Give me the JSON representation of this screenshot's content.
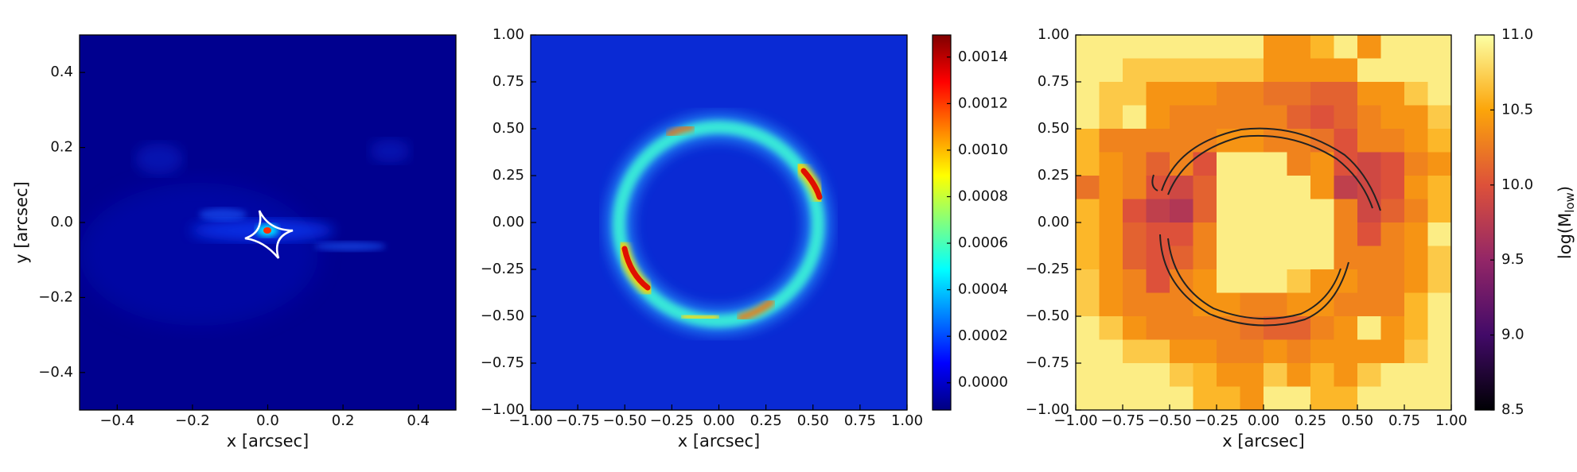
{
  "chart_data": [
    {
      "type": "image",
      "cmap": "jet",
      "xlabel": "x [arcsec]",
      "ylabel": "y [arcsec]",
      "xlim": [
        -0.5,
        0.5
      ],
      "ylim": [
        -0.5,
        0.5
      ],
      "xticks": [
        {
          "value": -0.4,
          "label": "−0.4"
        },
        {
          "value": -0.2,
          "label": "−0.2"
        },
        {
          "value": 0,
          "label": "0.0"
        },
        {
          "value": 0.2,
          "label": "0.2"
        },
        {
          "value": 0.4,
          "label": "0.4"
        }
      ],
      "yticks": [
        {
          "value": -0.4,
          "label": "−0.4"
        },
        {
          "value": -0.2,
          "label": "−0.2"
        },
        {
          "value": 0,
          "label": "0.0"
        },
        {
          "value": 0.2,
          "label": "0.2"
        },
        {
          "value": 0.4,
          "label": "0.4"
        }
      ]
    },
    {
      "type": "image",
      "cmap": "jet",
      "xlabel": "x [arcsec]",
      "xlim": [
        -1,
        1
      ],
      "ylim": [
        -1,
        1
      ],
      "xticks": [
        {
          "value": -1,
          "label": "−1.00"
        },
        {
          "value": -0.75,
          "label": "−0.75"
        },
        {
          "value": -0.5,
          "label": "−0.50"
        },
        {
          "value": -0.25,
          "label": "−0.25"
        },
        {
          "value": 0,
          "label": "0.00"
        },
        {
          "value": 0.25,
          "label": "0.25"
        },
        {
          "value": 0.5,
          "label": "0.50"
        },
        {
          "value": 0.75,
          "label": "0.75"
        },
        {
          "value": 1,
          "label": "1.00"
        }
      ],
      "yticks": [
        {
          "value": -1,
          "label": "−1.00"
        },
        {
          "value": -0.75,
          "label": "−0.75"
        },
        {
          "value": -0.5,
          "label": "−0.50"
        },
        {
          "value": -0.25,
          "label": "−0.25"
        },
        {
          "value": 0,
          "label": "0.00"
        },
        {
          "value": 0.25,
          "label": "0.25"
        },
        {
          "value": 0.5,
          "label": "0.50"
        },
        {
          "value": 0.75,
          "label": "0.75"
        },
        {
          "value": 1,
          "label": "1.00"
        }
      ],
      "colorbar": {
        "lim": [
          -0.000117,
          0.001495
        ],
        "ticks": [
          {
            "value": 0,
            "label": "0.0000"
          },
          {
            "value": 0.0002,
            "label": "0.0002"
          },
          {
            "value": 0.0004,
            "label": "0.0004"
          },
          {
            "value": 0.0006,
            "label": "0.0006"
          },
          {
            "value": 0.0008,
            "label": "0.0008"
          },
          {
            "value": 0.001,
            "label": "0.0010"
          },
          {
            "value": 0.0012,
            "label": "0.0012"
          },
          {
            "value": 0.0014,
            "label": "0.0014"
          }
        ]
      }
    },
    {
      "type": "heatmap",
      "cmap": "inferno",
      "xlabel": "x [arcsec]",
      "xlim": [
        -1,
        1
      ],
      "ylim": [
        -1,
        1
      ],
      "xticks": [
        {
          "value": -1,
          "label": "−1.00"
        },
        {
          "value": -0.75,
          "label": "−0.75"
        },
        {
          "value": -0.5,
          "label": "−0.50"
        },
        {
          "value": -0.25,
          "label": "−0.25"
        },
        {
          "value": 0,
          "label": "0.00"
        },
        {
          "value": 0.25,
          "label": "0.25"
        },
        {
          "value": 0.5,
          "label": "0.50"
        },
        {
          "value": 0.75,
          "label": "0.75"
        },
        {
          "value": 1,
          "label": "1.00"
        }
      ],
      "yticks": [
        {
          "value": -1,
          "label": "−1.00"
        },
        {
          "value": -0.75,
          "label": "−0.75"
        },
        {
          "value": -0.5,
          "label": "−0.50"
        },
        {
          "value": -0.25,
          "label": "−0.25"
        },
        {
          "value": 0,
          "label": "0.00"
        },
        {
          "value": 0.25,
          "label": "0.25"
        },
        {
          "value": 0.5,
          "label": "0.50"
        },
        {
          "value": 0.75,
          "label": "0.75"
        },
        {
          "value": 1,
          "label": "1.00"
        }
      ],
      "z": [
        [
          10.9,
          10.9,
          10.9,
          10.9,
          10.9,
          10.9,
          10.9,
          10.9,
          10.4,
          10.4,
          10.6,
          10.9,
          10.4,
          10.9,
          10.9,
          10.9
        ],
        [
          10.9,
          10.9,
          10.7,
          10.7,
          10.7,
          10.7,
          10.7,
          10.7,
          10.4,
          10.4,
          10.4,
          10.4,
          10.9,
          10.9,
          10.9,
          10.9
        ],
        [
          10.9,
          10.7,
          10.7,
          10.4,
          10.4,
          10.4,
          10.3,
          10.3,
          10.2,
          10.2,
          10.1,
          10.1,
          10.4,
          10.4,
          10.7,
          10.9
        ],
        [
          10.9,
          10.7,
          10.9,
          10.4,
          10.3,
          10.3,
          10.3,
          10.3,
          10.3,
          10.1,
          10.0,
          10.1,
          10.3,
          10.4,
          10.4,
          10.7
        ],
        [
          10.6,
          10.3,
          10.3,
          10.3,
          10.3,
          10.3,
          10.4,
          10.4,
          10.3,
          10.3,
          10.2,
          10.0,
          10.3,
          10.3,
          10.4,
          10.6
        ],
        [
          10.6,
          10.4,
          10.3,
          10.1,
          10.3,
          10.0,
          10.9,
          10.9,
          10.9,
          10.3,
          10.4,
          10.0,
          9.9,
          10.0,
          10.3,
          10.4
        ],
        [
          10.2,
          10.4,
          10.3,
          10.0,
          9.9,
          10.1,
          10.9,
          10.9,
          10.9,
          10.9,
          10.4,
          9.8,
          9.9,
          10.0,
          10.4,
          10.6
        ],
        [
          10.6,
          10.4,
          10.0,
          9.8,
          9.7,
          10.1,
          10.9,
          10.9,
          10.9,
          10.9,
          10.9,
          10.3,
          9.9,
          10.1,
          10.3,
          10.6
        ],
        [
          10.6,
          10.4,
          10.1,
          10.0,
          10.0,
          10.3,
          10.9,
          10.9,
          10.9,
          10.9,
          10.9,
          10.3,
          10.0,
          10.3,
          10.4,
          10.9
        ],
        [
          10.6,
          10.4,
          10.1,
          10.0,
          10.1,
          10.3,
          10.9,
          10.9,
          10.9,
          10.9,
          10.9,
          10.3,
          10.3,
          10.3,
          10.4,
          10.7
        ],
        [
          10.7,
          10.4,
          10.3,
          10.0,
          10.3,
          10.4,
          10.9,
          10.9,
          10.9,
          10.7,
          10.4,
          10.4,
          10.3,
          10.3,
          10.4,
          10.7
        ],
        [
          10.7,
          10.4,
          10.3,
          10.3,
          10.3,
          10.4,
          10.4,
          10.3,
          10.3,
          10.4,
          10.4,
          10.3,
          10.3,
          10.3,
          10.6,
          10.9
        ],
        [
          10.9,
          10.7,
          10.4,
          10.3,
          10.3,
          10.3,
          10.3,
          10.2,
          10.1,
          10.1,
          10.3,
          10.4,
          10.9,
          10.4,
          10.6,
          10.9
        ],
        [
          10.9,
          10.9,
          10.7,
          10.7,
          10.4,
          10.4,
          10.3,
          10.3,
          10.4,
          10.3,
          10.4,
          10.4,
          10.4,
          10.4,
          10.7,
          10.9
        ],
        [
          10.9,
          10.9,
          10.9,
          10.9,
          10.7,
          10.6,
          10.4,
          10.4,
          10.7,
          10.4,
          10.6,
          10.4,
          10.7,
          10.9,
          10.9,
          10.9
        ],
        [
          10.9,
          10.9,
          10.9,
          10.9,
          10.9,
          10.6,
          10.6,
          10.4,
          10.9,
          10.9,
          10.6,
          10.6,
          10.9,
          10.9,
          10.9,
          10.9
        ]
      ],
      "colorbar": {
        "lim": [
          8.5,
          11.0
        ],
        "ticks": [
          8.5,
          {
            "value": 9,
            "label": "9.0"
          },
          9.5,
          {
            "value": 10,
            "label": "10.0"
          },
          10.5,
          {
            "value": 11,
            "label": "11.0"
          }
        ],
        "label": {
          "text": "log(M",
          "subscript": "low",
          "suffix": ")"
        }
      }
    }
  ]
}
